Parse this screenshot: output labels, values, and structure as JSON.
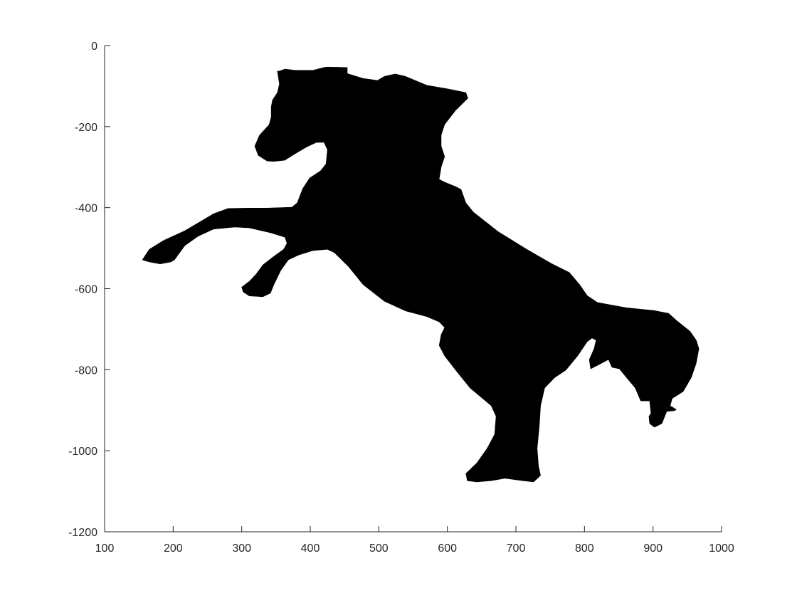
{
  "chart_data": {
    "type": "fill",
    "color": "#000000",
    "xlim": [
      100,
      1000
    ],
    "ylim": [
      -1200,
      0
    ],
    "xticks": [
      100,
      200,
      300,
      400,
      500,
      600,
      700,
      800,
      900,
      1000
    ],
    "yticks": [
      -1200,
      -1000,
      -800,
      -600,
      -400,
      -200,
      0
    ],
    "x": [
      355,
      363,
      378,
      404,
      420,
      425,
      454,
      454,
      477,
      498,
      508,
      524,
      539,
      570,
      601,
      627,
      630,
      612,
      596,
      591,
      591,
      596,
      591,
      588,
      596,
      612,
      620,
      627,
      638,
      674,
      716,
      752,
      778,
      793,
      804,
      819,
      861,
      902,
      923,
      934,
      954,
      963,
      967,
      963,
      956,
      944,
      928,
      925,
      934,
      932,
      920,
      913,
      902,
      895,
      894,
      897,
      895,
      882,
      874,
      861,
      851,
      840,
      835,
      825,
      809,
      807,
      814,
      817,
      811,
      804,
      790,
      773,
      757,
      742,
      736,
      734,
      731,
      733,
      736,
      726,
      710,
      684,
      664,
      643,
      629,
      627,
      643,
      658,
      669,
      671,
      664,
      633,
      612,
      596,
      588,
      591,
      596,
      588,
      570,
      539,
      508,
      477,
      456,
      435,
      425,
      404,
      383,
      368,
      357,
      347,
      342,
      331,
      311,
      302,
      300,
      311,
      321,
      331,
      347,
      361,
      366,
      363,
      342,
      311,
      290,
      259,
      236,
      217,
      207,
      202,
      197,
      181,
      165,
      155,
      165,
      186,
      217,
      238,
      259,
      280,
      311,
      337,
      373,
      381,
      389,
      399,
      415,
      423,
      425,
      420,
      409,
      394,
      378,
      363,
      347,
      337,
      324,
      319,
      326,
      340,
      343,
      343,
      345,
      352,
      355,
      352
    ],
    "y": [
      -63,
      -58,
      -61,
      -61,
      -54,
      -53,
      -54,
      -69,
      -81,
      -86,
      -76,
      -70,
      -76,
      -98,
      -107,
      -116,
      -130,
      -160,
      -195,
      -221,
      -248,
      -274,
      -300,
      -330,
      -337,
      -348,
      -355,
      -388,
      -411,
      -459,
      -503,
      -538,
      -560,
      -590,
      -617,
      -634,
      -647,
      -654,
      -661,
      -678,
      -705,
      -727,
      -748,
      -784,
      -819,
      -854,
      -871,
      -889,
      -898,
      -901,
      -903,
      -933,
      -942,
      -933,
      -915,
      -907,
      -877,
      -877,
      -845,
      -819,
      -798,
      -794,
      -775,
      -784,
      -798,
      -775,
      -748,
      -727,
      -722,
      -731,
      -766,
      -801,
      -819,
      -845,
      -889,
      -942,
      -994,
      -1038,
      -1061,
      -1077,
      -1074,
      -1068,
      -1074,
      -1077,
      -1074,
      -1056,
      -1030,
      -994,
      -959,
      -915,
      -889,
      -845,
      -801,
      -766,
      -740,
      -713,
      -696,
      -682,
      -669,
      -655,
      -631,
      -590,
      -546,
      -511,
      -503,
      -506,
      -517,
      -529,
      -555,
      -590,
      -611,
      -620,
      -618,
      -608,
      -596,
      -582,
      -564,
      -541,
      -520,
      -503,
      -488,
      -473,
      -462,
      -450,
      -448,
      -453,
      -471,
      -494,
      -517,
      -529,
      -534,
      -539,
      -534,
      -529,
      -503,
      -481,
      -457,
      -436,
      -415,
      -402,
      -401,
      -401,
      -399,
      -388,
      -353,
      -327,
      -309,
      -292,
      -257,
      -239,
      -239,
      -251,
      -267,
      -283,
      -286,
      -285,
      -271,
      -248,
      -221,
      -195,
      -177,
      -151,
      -134,
      -116,
      -95,
      -63
    ]
  }
}
